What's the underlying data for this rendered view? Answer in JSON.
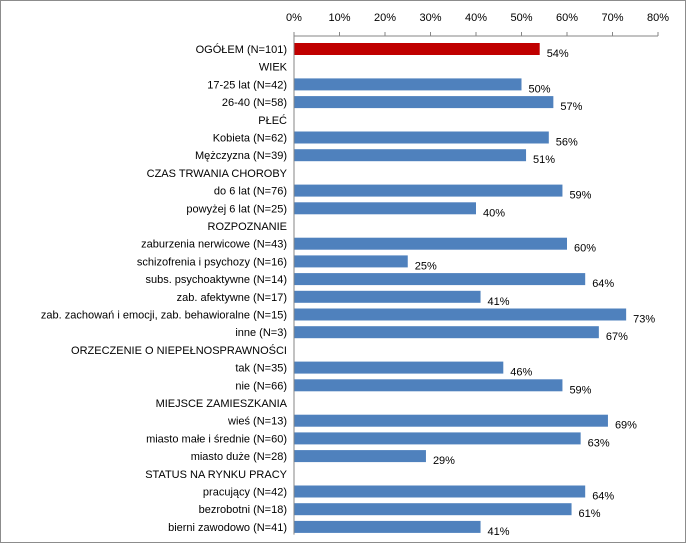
{
  "chart_data": {
    "type": "bar",
    "orientation": "horizontal",
    "x_axis_position": "top",
    "xlim": [
      0,
      80
    ],
    "x_ticks": [
      "0%",
      "10%",
      "20%",
      "30%",
      "40%",
      "50%",
      "60%",
      "70%",
      "80%"
    ],
    "grid": false,
    "legend": "none",
    "colors": {
      "highlight": "#c00000",
      "default": "#4f81bd"
    },
    "rows": [
      {
        "label": "OGÓŁEM  (N=101)",
        "value": 54,
        "value_label": "54%",
        "highlight": true
      },
      {
        "label": "WIEK",
        "section": true
      },
      {
        "label": "17-25 lat  (N=42)",
        "value": 50,
        "value_label": "50%"
      },
      {
        "label": "26-40  (N=58)",
        "value": 57,
        "value_label": "57%"
      },
      {
        "label": "PŁEĆ",
        "section": true
      },
      {
        "label": "Kobieta  (N=62)",
        "value": 56,
        "value_label": "56%"
      },
      {
        "label": "Mężczyzna  (N=39)",
        "value": 51,
        "value_label": "51%"
      },
      {
        "label": "CZAS TRWANIA CHOROBY",
        "section": true
      },
      {
        "label": "do 6 lat  (N=76)",
        "value": 59,
        "value_label": "59%"
      },
      {
        "label": "powyżej 6 lat  (N=25)",
        "value": 40,
        "value_label": "40%"
      },
      {
        "label": "ROZPOZNANIE",
        "section": true
      },
      {
        "label": "zaburzenia nerwicowe (N=43)",
        "value": 60,
        "value_label": "60%"
      },
      {
        "label": "schizofrenia i psychozy (N=16)",
        "value": 25,
        "value_label": "25%"
      },
      {
        "label": "subs. psychoaktywne (N=14)",
        "value": 64,
        "value_label": "64%"
      },
      {
        "label": "zab. afektywne (N=17)",
        "value": 41,
        "value_label": "41%"
      },
      {
        "label": "zab. zachowań i emocji, zab. behawioralne (N=15)",
        "value": 73,
        "value_label": "73%"
      },
      {
        "label": "inne (N=3)",
        "value": 67,
        "value_label": "67%"
      },
      {
        "label": "ORZECZENIE O NIEPEŁNOSPRAWNOŚCI",
        "section": true
      },
      {
        "label": "tak (N=35)",
        "value": 46,
        "value_label": "46%"
      },
      {
        "label": "nie (N=66)",
        "value": 59,
        "value_label": "59%"
      },
      {
        "label": "MIEJSCE ZAMIESZKANIA",
        "section": true
      },
      {
        "label": "wieś (N=13)",
        "value": 69,
        "value_label": "69%"
      },
      {
        "label": "miasto małe i średnie (N=60)",
        "value": 63,
        "value_label": "63%"
      },
      {
        "label": "miasto duże (N=28)",
        "value": 29,
        "value_label": "29%"
      },
      {
        "label": "STATUS NA RYNKU PRACY",
        "section": true
      },
      {
        "label": "pracujący (N=42)",
        "value": 64,
        "value_label": "64%"
      },
      {
        "label": "bezrobotni (N=18)",
        "value": 61,
        "value_label": "61%"
      },
      {
        "label": "bierni zawodowo (N=41)",
        "value": 41,
        "value_label": "41%"
      }
    ]
  }
}
